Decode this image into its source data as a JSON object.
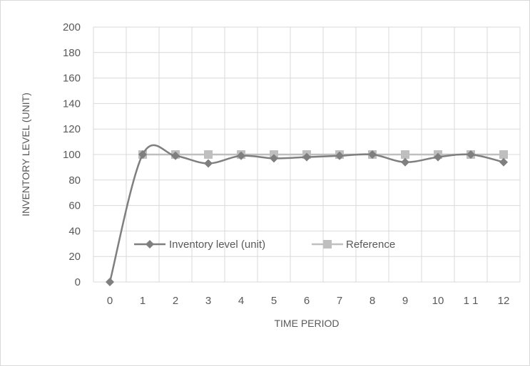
{
  "chart_data": {
    "type": "line",
    "title": "",
    "xlabel": "TIME PERIOD",
    "ylabel": "INVENTORY LEVEL (UNIT)",
    "x": [
      0,
      1,
      2,
      3,
      4,
      5,
      6,
      7,
      8,
      9,
      10,
      11,
      12
    ],
    "x_tick_labels": [
      "0",
      "1",
      "2",
      "3",
      "4",
      "5",
      "6",
      "7",
      "8",
      "9",
      "10",
      "1 1",
      "12"
    ],
    "ylim": [
      0,
      200
    ],
    "y_ticks": [
      0,
      20,
      40,
      60,
      80,
      100,
      120,
      140,
      160,
      180,
      200
    ],
    "grid": true,
    "smoothed": true,
    "legend_position": "inside-bottom-left",
    "series": [
      {
        "name": "Inventory level (unit)",
        "marker": "diamond",
        "color": "#7f7f7f",
        "values": [
          0,
          100,
          99,
          93,
          99,
          97,
          98,
          99,
          100,
          94,
          98,
          100,
          94
        ]
      },
      {
        "name": "Reference",
        "marker": "square",
        "color": "#bfbfbf",
        "values": [
          null,
          100,
          100,
          100,
          100,
          100,
          100,
          100,
          100,
          100,
          100,
          100,
          100
        ]
      }
    ]
  }
}
